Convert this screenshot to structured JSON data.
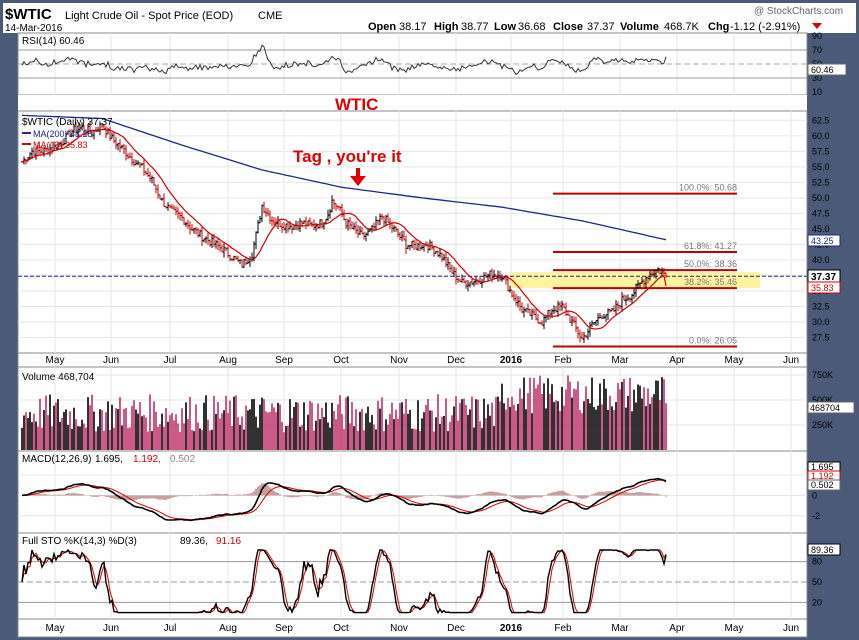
{
  "header": {
    "symbol": "$WTIC",
    "name": "Light Crude Oil - Spot Price (EOD)",
    "exchange": "CME",
    "date": "14-Mar-2016",
    "watermark": "@ StockCharts.com",
    "open_label": "Open",
    "open": "38.17",
    "high_label": "High",
    "high": "38.77",
    "low_label": "Low",
    "low": "36.68",
    "close_label": "Close",
    "close": "37.37",
    "volume_label": "Volume",
    "volume": "468.7K",
    "chg_label": "Chg",
    "chg": "-1.12 (-2.91%)"
  },
  "annotations": {
    "title": "WTIC",
    "tag_text": "Tag , you're it"
  },
  "colors": {
    "frame": "#4a5a78",
    "panel_bg": "#ffffff",
    "price_bar": "#000000",
    "ma200": "#1b2a8a",
    "ma13": "#d40000",
    "fib_band": "#fff3a0",
    "fib_line": "#c00000",
    "grid": "#e6e6e6",
    "volume_up": "#000000",
    "volume_down": "#c0306a",
    "accent_red": "#e00000"
  },
  "chart_data": [
    {
      "panel": "rsi",
      "type": "line",
      "legend": "RSI(14) 60.46",
      "last_value_label": "60.46",
      "ylim": [
        10,
        90
      ],
      "yticks": [
        "90",
        "70",
        "50",
        "30",
        "10"
      ]
    },
    {
      "panel": "price",
      "type": "ohlc",
      "legend": [
        "$WTIC (Daily) 37.37",
        "MA(200) 43.25",
        "MA(13) 35.83"
      ],
      "ylim": [
        25,
        64
      ],
      "yticks": [
        "62.5",
        "60.0",
        "57.5",
        "55.0",
        "52.5",
        "50.0",
        "47.5",
        "45.0",
        "42.5",
        "40.0",
        "37.5",
        "35.0",
        "32.5",
        "30.0",
        "27.5"
      ],
      "x_labels": [
        "May",
        "Jun",
        "Jul",
        "Aug",
        "Sep",
        "Oct",
        "Nov",
        "Dec",
        "2016",
        "Feb",
        "Mar",
        "Apr",
        "May",
        "Jun"
      ],
      "price_label": "37.37",
      "ma200_label": "43.25",
      "ma13_label": "35.83",
      "close_key": [
        [
          0,
          55.8
        ],
        [
          5,
          57.5
        ],
        [
          10,
          57.5
        ],
        [
          15,
          58.0
        ],
        [
          20,
          59.0
        ],
        [
          25,
          60.8
        ],
        [
          30,
          61.3
        ],
        [
          35,
          60.5
        ],
        [
          40,
          61.8
        ],
        [
          45,
          59.5
        ],
        [
          50,
          58.0
        ],
        [
          55,
          56.3
        ],
        [
          60,
          54.8
        ],
        [
          65,
          52.8
        ],
        [
          70,
          49.5
        ],
        [
          75,
          47.7
        ],
        [
          80,
          46.8
        ],
        [
          85,
          45.0
        ],
        [
          90,
          43.8
        ],
        [
          95,
          42.8
        ],
        [
          100,
          41.8
        ],
        [
          105,
          40.5
        ],
        [
          110,
          39.2
        ],
        [
          115,
          41.0
        ],
        [
          118,
          45.5
        ],
        [
          120,
          48.8
        ],
        [
          125,
          46.5
        ],
        [
          130,
          45.7
        ],
        [
          135,
          45.5
        ],
        [
          140,
          46.0
        ],
        [
          145,
          45.5
        ],
        [
          150,
          46.0
        ],
        [
          153,
          47.5
        ],
        [
          155,
          49.5
        ],
        [
          158,
          48.5
        ],
        [
          162,
          46.0
        ],
        [
          166,
          44.8
        ],
        [
          170,
          43.7
        ],
        [
          175,
          44.8
        ],
        [
          180,
          47.0
        ],
        [
          183,
          46.0
        ],
        [
          187,
          44.5
        ],
        [
          192,
          42.5
        ],
        [
          197,
          42.2
        ],
        [
          202,
          42.6
        ],
        [
          207,
          41.5
        ],
        [
          210,
          40.5
        ],
        [
          215,
          38.0
        ],
        [
          220,
          36.3
        ],
        [
          225,
          36.5
        ],
        [
          230,
          37.0
        ],
        [
          235,
          37.8
        ],
        [
          240,
          37.5
        ],
        [
          245,
          34.5
        ],
        [
          250,
          32.0
        ],
        [
          255,
          31.0
        ],
        [
          260,
          30.0
        ],
        [
          265,
          32.0
        ],
        [
          270,
          32.5
        ],
        [
          275,
          30.0
        ],
        [
          280,
          27.2
        ],
        [
          285,
          29.5
        ],
        [
          290,
          31.2
        ],
        [
          295,
          31.5
        ],
        [
          300,
          33.5
        ],
        [
          305,
          34.5
        ],
        [
          310,
          36.5
        ],
        [
          313,
          37.5
        ],
        [
          318,
          38.5
        ],
        [
          322,
          37.37
        ]
      ],
      "ma200_key": [
        [
          0,
          63.3
        ],
        [
          40,
          62.8
        ],
        [
          80,
          58.5
        ],
        [
          120,
          54.5
        ],
        [
          160,
          51.7
        ],
        [
          200,
          50.0
        ],
        [
          240,
          48.5
        ],
        [
          280,
          46.3
        ],
        [
          322,
          43.25
        ]
      ],
      "fib_levels": [
        {
          "label": "100.0%: 50.68",
          "value": 50.68
        },
        {
          "label": "61.8%: 41.27",
          "value": 41.27
        },
        {
          "label": "50.0%: 38.36",
          "value": 38.36
        },
        {
          "label": "38.2%: 35.46",
          "value": 35.46
        },
        {
          "label": "0.0%: 26.05",
          "value": 26.05
        }
      ]
    },
    {
      "panel": "volume",
      "type": "bar",
      "legend": "Volume 468,704",
      "last_value_label": "468704",
      "ylim": [
        0,
        800
      ],
      "yticks": [
        "750K",
        "500K",
        "250K"
      ]
    },
    {
      "panel": "macd",
      "type": "line",
      "legend": "MACD(12,26,9) 1.695, 1.192, 0.502",
      "legend_parts": [
        "MACD(12,26,9)",
        "1.695,",
        "1.192,",
        "0.502"
      ],
      "value_labels": [
        "1.695",
        "1.192",
        "0.502"
      ],
      "ylim": [
        -3.5,
        3
      ],
      "yticks": [
        "2",
        "0",
        "-2"
      ]
    },
    {
      "panel": "stochastics",
      "type": "line",
      "legend": "Full STO %K(14,3) %D(3) 89.36, 91.16",
      "legend_parts": [
        "Full STO %K(14,3) %D(3)",
        "89.36,",
        "91.16"
      ],
      "last_value_label": "89.36",
      "ylim": [
        0,
        100
      ],
      "yticks": [
        "80",
        "50",
        "20"
      ]
    }
  ]
}
